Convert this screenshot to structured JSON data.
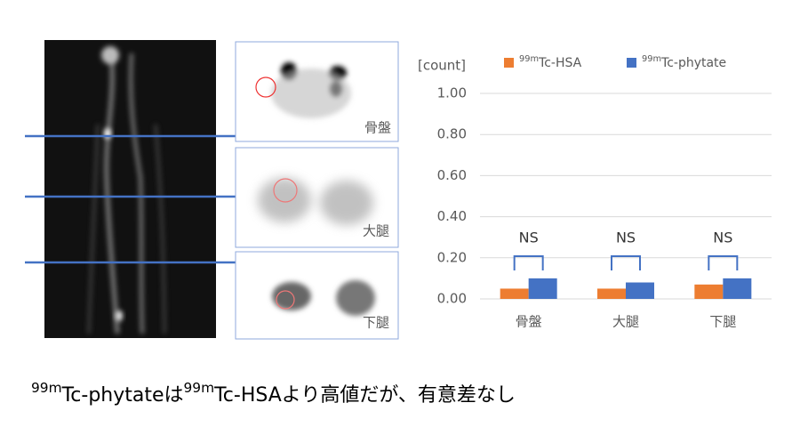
{
  "chart_data": {
    "type": "bar",
    "ylabel": "[count]",
    "categories": [
      "骨盤",
      "大腿",
      "下腿"
    ],
    "series": [
      {
        "name": "99mTc-HSA",
        "color": "#ed7d31",
        "values": [
          0.05,
          0.05,
          0.07
        ]
      },
      {
        "name": "99mTc-phytate",
        "color": "#4472c4",
        "values": [
          0.1,
          0.08,
          0.1
        ]
      }
    ],
    "ylim": [
      0,
      1
    ],
    "yticks": [
      {
        "value": 0,
        "label": "0.00"
      },
      {
        "value": 0.2,
        "label": "0.20"
      },
      {
        "value": 0.4,
        "label": "0.40"
      },
      {
        "value": 0.6,
        "label": "0.60"
      },
      {
        "value": 0.8,
        "label": "0.80"
      },
      {
        "value": 1,
        "label": "1.00"
      }
    ],
    "grid": true,
    "annotations": [
      "NS",
      "NS",
      "NS"
    ]
  },
  "images": [
    {
      "label": "骨盤"
    },
    {
      "label": "大腿"
    },
    {
      "label": "下腿"
    }
  ],
  "caption": "99mTc-phytateは99mTc-HSAより高値だが、有意差なし"
}
